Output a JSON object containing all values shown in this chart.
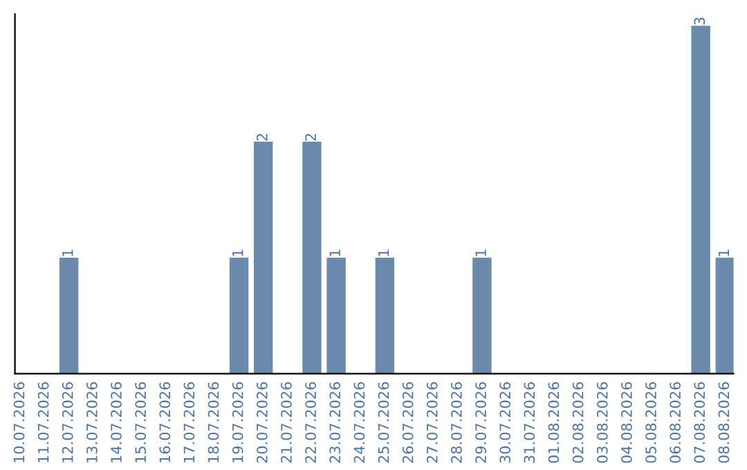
{
  "chart_data": {
    "type": "bar",
    "categories": [
      "10.07.2026",
      "11.07.2026",
      "12.07.2026",
      "13.07.2026",
      "14.07.2026",
      "15.07.2026",
      "16.07.2026",
      "17.07.2026",
      "18.07.2026",
      "19.07.2026",
      "20.07.2026",
      "21.07.2026",
      "22.07.2026",
      "23.07.2026",
      "24.07.2026",
      "25.07.2026",
      "26.07.2026",
      "27.07.2026",
      "28.07.2026",
      "29.07.2026",
      "30.07.2026",
      "31.07.2026",
      "01.08.2026",
      "02.08.2026",
      "03.08.2026",
      "04.08.2026",
      "05.08.2026",
      "06.08.2026",
      "07.08.2026",
      "08.08.2026"
    ],
    "values": [
      0,
      0,
      1,
      0,
      0,
      0,
      0,
      0,
      0,
      1,
      2,
      0,
      2,
      1,
      0,
      1,
      0,
      0,
      0,
      1,
      0,
      0,
      0,
      0,
      0,
      0,
      0,
      0,
      3,
      1
    ],
    "value_labels": [
      null,
      null,
      "1",
      null,
      null,
      null,
      null,
      null,
      null,
      "1",
      "2",
      null,
      "2",
      "1",
      null,
      "1",
      null,
      null,
      null,
      "1",
      null,
      null,
      null,
      null,
      null,
      null,
      null,
      null,
      "3",
      "1"
    ],
    "color": "#6a8bab",
    "ylim": [
      0,
      3.1
    ],
    "tick_labels": "x",
    "grid": false,
    "legend": false
  }
}
